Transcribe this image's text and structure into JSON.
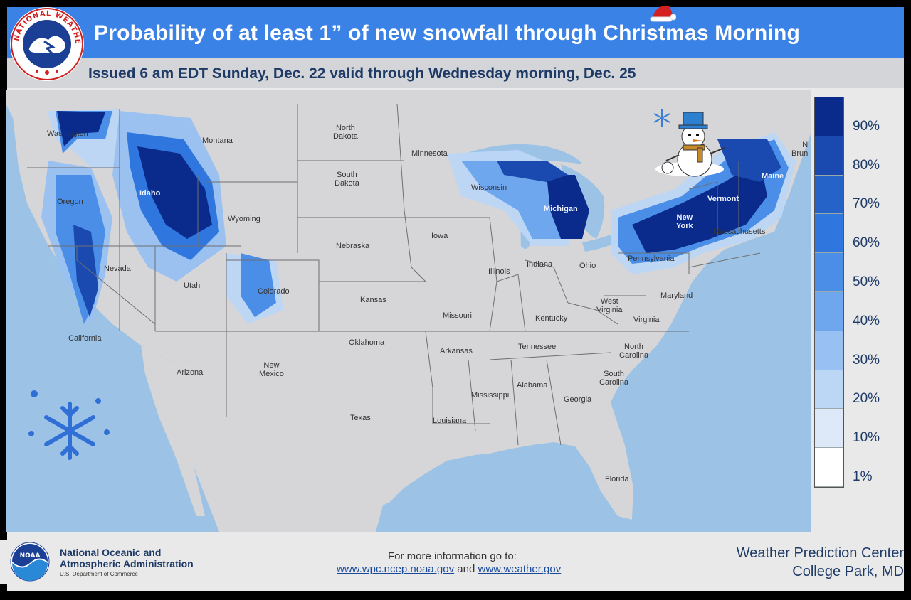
{
  "header": {
    "title": "Probability of at least 1” of new snowfall through Christmas Morning",
    "subtitle": "Issued 6 am EDT Sunday, Dec. 22 valid through Wednesday morning, Dec. 25",
    "nws_logo_text": "NATIONAL WEATHER SERVICE"
  },
  "map": {
    "states": {
      "washington": "Washington",
      "oregon": "Oregon",
      "california": "California",
      "idaho": "Idaho",
      "nevada": "Nevada",
      "montana": "Montana",
      "wyoming": "Wyoming",
      "utah": "Utah",
      "arizona": "Arizona",
      "colorado": "Colorado",
      "new_mexico": "New\nMexico",
      "north_dakota": "North\nDakota",
      "south_dakota": "South\nDakota",
      "nebraska": "Nebraska",
      "kansas": "Kansas",
      "oklahoma": "Oklahoma",
      "texas": "Texas",
      "minnesota": "Minnesota",
      "iowa": "Iowa",
      "missouri": "Missouri",
      "arkansas": "Arkansas",
      "louisiana": "Louisiana",
      "wisconsin": "Wisconsin",
      "illinois": "Illinois",
      "michigan": "Michigan",
      "indiana": "Indiana",
      "ohio": "Ohio",
      "kentucky": "Kentucky",
      "tennessee": "Tennessee",
      "mississippi": "Mississippi",
      "alabama": "Alabama",
      "georgia": "Georgia",
      "florida": "Florida",
      "south_carolina": "South\nCarolina",
      "north_carolina": "North\nCarolina",
      "virginia": "Virginia",
      "west_virginia": "West\nVirginia",
      "maryland": "Maryland",
      "pennsylvania": "Pennsylvania",
      "new_york": "New\nYork",
      "vermont": "Vermont",
      "maine": "Maine",
      "massachusetts": "Massachusetts",
      "new_brunswick": "N\nBrun"
    }
  },
  "legend": {
    "labels": [
      "90%",
      "80%",
      "70%",
      "60%",
      "50%",
      "40%",
      "30%",
      "20%",
      "10%",
      "1%"
    ],
    "colors": [
      "#0a2a8c",
      "#1a4ab0",
      "#2563c8",
      "#2f77de",
      "#4a8ee8",
      "#6fa7ee",
      "#98c0f2",
      "#bcd6f6",
      "#dde8f8",
      "#ffffff"
    ]
  },
  "footer": {
    "noaa_name_line1": "National Oceanic and",
    "noaa_name_line2": "Atmospheric Administration",
    "noaa_dept": "U.S. Department of Commerce",
    "noaa_logo_text": "NOAA",
    "info_heading": "For more information go to:",
    "link1": "www.wpc.ncep.noaa.gov",
    "link_joiner": "and",
    "link2": "www.weather.gov",
    "wpc_line1": "Weather Prediction Center",
    "wpc_line2": "College Park, MD"
  }
}
